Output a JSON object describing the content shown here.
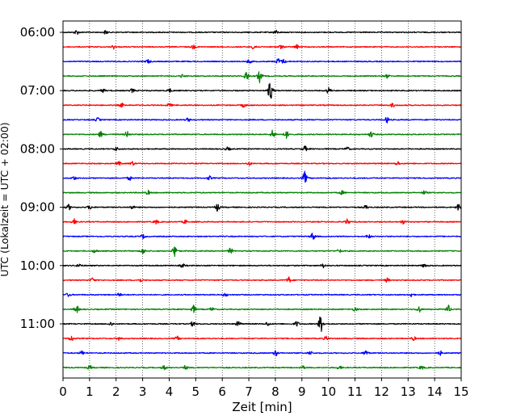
{
  "chart_data": {
    "type": "line",
    "xlabel": "Zeit  [min]",
    "ylabel": "UTC (Lokalzeit = UTC + 02:00)",
    "xlim": [
      0,
      15
    ],
    "x_ticks": [
      "0",
      "1",
      "2",
      "3",
      "4",
      "5",
      "6",
      "7",
      "8",
      "9",
      "10",
      "11",
      "12",
      "13",
      "14",
      "15"
    ],
    "y_ticks": [
      "06:00",
      "07:00",
      "08:00",
      "09:00",
      "10:00",
      "11:00"
    ],
    "grid": "vertical-dotted",
    "colors": [
      "#000000",
      "#ff0000",
      "#0000ff",
      "#008000"
    ],
    "traces": [
      {
        "start": "06:00",
        "color": "#000000",
        "events": [
          {
            "t": 0.5,
            "a": 2.5
          },
          {
            "t": 1.6,
            "a": 2
          },
          {
            "t": 8.0,
            "a": 2
          }
        ]
      },
      {
        "start": "06:15",
        "color": "#ff0000",
        "events": [
          {
            "t": 1.9,
            "a": 2
          },
          {
            "t": 4.9,
            "a": 2
          },
          {
            "t": 7.2,
            "a": 3
          },
          {
            "t": 8.2,
            "a": 2
          },
          {
            "t": 8.8,
            "a": 2
          }
        ]
      },
      {
        "start": "06:30",
        "color": "#0000ff",
        "events": [
          {
            "t": 3.2,
            "a": 2
          },
          {
            "t": 7.0,
            "a": 2
          },
          {
            "t": 8.1,
            "a": 3
          },
          {
            "t": 8.3,
            "a": 2
          }
        ]
      },
      {
        "start": "06:45",
        "color": "#008000",
        "events": [
          {
            "t": 6.9,
            "a": 5
          },
          {
            "t": 7.4,
            "a": 6
          },
          {
            "t": 4.5,
            "a": 2
          },
          {
            "t": 12.2,
            "a": 2
          }
        ]
      },
      {
        "start": "07:00",
        "color": "#000000",
        "events": [
          {
            "t": 1.5,
            "a": 2
          },
          {
            "t": 2.6,
            "a": 2
          },
          {
            "t": 7.8,
            "a": 11
          },
          {
            "t": 10.0,
            "a": 3
          },
          {
            "t": 4.0,
            "a": 2
          }
        ]
      },
      {
        "start": "07:15",
        "color": "#ff0000",
        "events": [
          {
            "t": 2.2,
            "a": 2
          },
          {
            "t": 4.0,
            "a": 2
          },
          {
            "t": 6.8,
            "a": 2
          },
          {
            "t": 12.4,
            "a": 2
          }
        ]
      },
      {
        "start": "07:30",
        "color": "#0000ff",
        "events": [
          {
            "t": 1.3,
            "a": 2
          },
          {
            "t": 4.7,
            "a": 2
          },
          {
            "t": 12.2,
            "a": 3
          }
        ]
      },
      {
        "start": "07:45",
        "color": "#008000",
        "events": [
          {
            "t": 1.4,
            "a": 3
          },
          {
            "t": 2.4,
            "a": 3
          },
          {
            "t": 7.9,
            "a": 5
          },
          {
            "t": 8.4,
            "a": 4
          },
          {
            "t": 11.6,
            "a": 3
          }
        ]
      },
      {
        "start": "08:00",
        "color": "#000000",
        "events": [
          {
            "t": 2.0,
            "a": 2
          },
          {
            "t": 6.2,
            "a": 2
          },
          {
            "t": 9.1,
            "a": 3
          },
          {
            "t": 10.7,
            "a": 2
          }
        ]
      },
      {
        "start": "08:15",
        "color": "#ff0000",
        "events": [
          {
            "t": 2.1,
            "a": 2
          },
          {
            "t": 2.6,
            "a": 2
          },
          {
            "t": 7.0,
            "a": 2
          },
          {
            "t": 12.6,
            "a": 2
          }
        ]
      },
      {
        "start": "08:30",
        "color": "#0000ff",
        "events": [
          {
            "t": 0.4,
            "a": 2
          },
          {
            "t": 5.5,
            "a": 2
          },
          {
            "t": 9.1,
            "a": 6
          },
          {
            "t": 2.5,
            "a": 2
          }
        ]
      },
      {
        "start": "08:45",
        "color": "#008000",
        "events": [
          {
            "t": 3.2,
            "a": 2
          },
          {
            "t": 10.5,
            "a": 2
          },
          {
            "t": 13.6,
            "a": 2
          }
        ]
      },
      {
        "start": "09:00",
        "color": "#000000",
        "events": [
          {
            "t": 0.2,
            "a": 3
          },
          {
            "t": 1.0,
            "a": 2
          },
          {
            "t": 2.6,
            "a": 2
          },
          {
            "t": 5.8,
            "a": 4
          },
          {
            "t": 11.4,
            "a": 2
          },
          {
            "t": 14.9,
            "a": 5
          }
        ]
      },
      {
        "start": "09:15",
        "color": "#ff0000",
        "events": [
          {
            "t": 0.4,
            "a": 3
          },
          {
            "t": 3.5,
            "a": 2
          },
          {
            "t": 4.6,
            "a": 2
          },
          {
            "t": 10.7,
            "a": 3
          },
          {
            "t": 12.8,
            "a": 2
          }
        ]
      },
      {
        "start": "09:30",
        "color": "#0000ff",
        "events": [
          {
            "t": 3.0,
            "a": 2
          },
          {
            "t": 9.4,
            "a": 4
          },
          {
            "t": 11.5,
            "a": 2
          }
        ]
      },
      {
        "start": "09:45",
        "color": "#008000",
        "events": [
          {
            "t": 1.2,
            "a": 2
          },
          {
            "t": 3.0,
            "a": 3
          },
          {
            "t": 4.2,
            "a": 6
          },
          {
            "t": 6.3,
            "a": 3
          },
          {
            "t": 10.4,
            "a": 2
          }
        ]
      },
      {
        "start": "10:00",
        "color": "#000000",
        "events": [
          {
            "t": 0.6,
            "a": 2
          },
          {
            "t": 4.5,
            "a": 2
          },
          {
            "t": 9.8,
            "a": 2
          },
          {
            "t": 13.6,
            "a": 2
          }
        ]
      },
      {
        "start": "10:15",
        "color": "#ff0000",
        "events": [
          {
            "t": 1.1,
            "a": 2
          },
          {
            "t": 2.9,
            "a": 2
          },
          {
            "t": 8.5,
            "a": 3
          },
          {
            "t": 12.2,
            "a": 2
          }
        ]
      },
      {
        "start": "10:30",
        "color": "#0000ff",
        "events": [
          {
            "t": 0.2,
            "a": 2
          },
          {
            "t": 2.1,
            "a": 2
          },
          {
            "t": 6.1,
            "a": 2
          },
          {
            "t": 13.1,
            "a": 2
          }
        ]
      },
      {
        "start": "10:45",
        "color": "#008000",
        "events": [
          {
            "t": 0.5,
            "a": 4
          },
          {
            "t": 4.9,
            "a": 4
          },
          {
            "t": 5.6,
            "a": 2
          },
          {
            "t": 11.0,
            "a": 2
          },
          {
            "t": 13.4,
            "a": 3
          },
          {
            "t": 14.5,
            "a": 4
          }
        ]
      },
      {
        "start": "11:00",
        "color": "#000000",
        "events": [
          {
            "t": 1.8,
            "a": 2
          },
          {
            "t": 4.9,
            "a": 3
          },
          {
            "t": 6.6,
            "a": 3
          },
          {
            "t": 7.7,
            "a": 2
          },
          {
            "t": 8.8,
            "a": 3
          },
          {
            "t": 9.7,
            "a": 9
          }
        ]
      },
      {
        "start": "11:15",
        "color": "#ff0000",
        "events": [
          {
            "t": 0.3,
            "a": 3
          },
          {
            "t": 2.1,
            "a": 2
          },
          {
            "t": 4.3,
            "a": 2
          },
          {
            "t": 9.9,
            "a": 2
          },
          {
            "t": 13.2,
            "a": 2
          }
        ]
      },
      {
        "start": "11:30",
        "color": "#0000ff",
        "events": [
          {
            "t": 0.7,
            "a": 2
          },
          {
            "t": 8.0,
            "a": 3
          },
          {
            "t": 9.3,
            "a": 2
          },
          {
            "t": 11.4,
            "a": 3
          },
          {
            "t": 14.2,
            "a": 2
          }
        ]
      },
      {
        "start": "11:45",
        "color": "#008000",
        "events": [
          {
            "t": 1.0,
            "a": 2
          },
          {
            "t": 3.8,
            "a": 2
          },
          {
            "t": 4.6,
            "a": 2
          },
          {
            "t": 9.0,
            "a": 2
          },
          {
            "t": 10.4,
            "a": 2
          },
          {
            "t": 13.5,
            "a": 2
          }
        ]
      }
    ]
  }
}
